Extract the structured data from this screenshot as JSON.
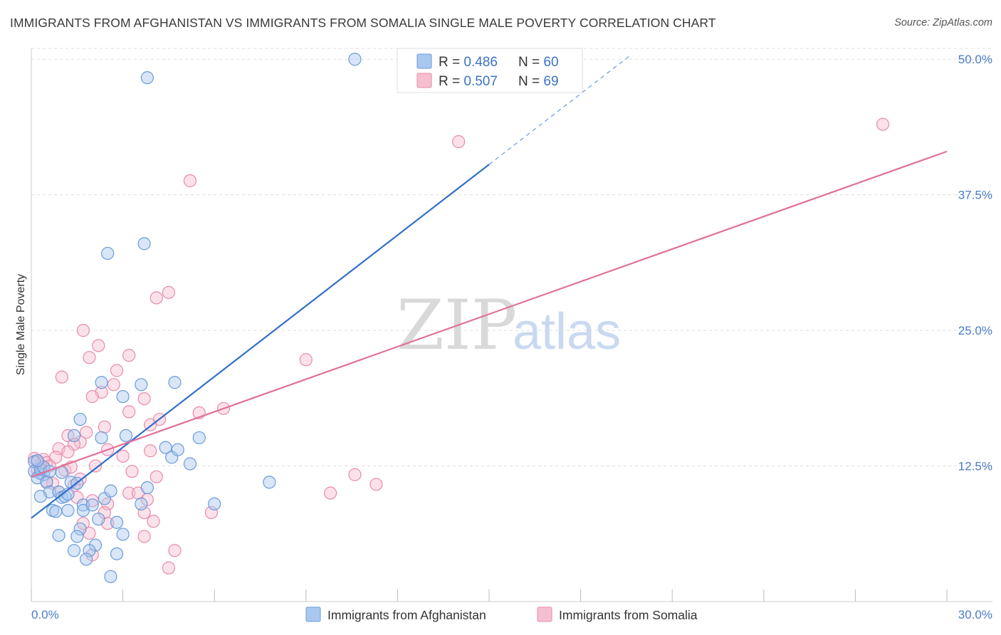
{
  "header": {
    "title": "IMMIGRANTS FROM AFGHANISTAN VS IMMIGRANTS FROM SOMALIA SINGLE MALE POVERTY CORRELATION CHART",
    "source": "Source: ZipAtlas.com"
  },
  "watermark": {
    "zip": "ZIP",
    "atlas": "atlas"
  },
  "colors": {
    "afghanistan_fill": "#a9c8f0",
    "afghanistan_stroke": "#6b9bd9",
    "afghanistan_line": "#2f6fc9",
    "somalia_fill": "#f6bfd0",
    "somalia_stroke": "#e98aab",
    "somalia_line": "#e07098",
    "tick_text": "#4a7cc7"
  },
  "legend": {
    "items": [
      {
        "r_label": "R = ",
        "r_value": "0.486",
        "n_label": "N = ",
        "n_value": "60"
      },
      {
        "r_label": "R = ",
        "r_value": "0.507",
        "n_label": "N = ",
        "n_value": "69"
      }
    ]
  },
  "chart_data": {
    "type": "scatter",
    "title": "IMMIGRANTS FROM AFGHANISTAN VS IMMIGRANTS FROM SOMALIA SINGLE MALE POVERTY CORRELATION CHART",
    "xlabel": "",
    "ylabel": "Single Male Poverty",
    "xlim": [
      0,
      30
    ],
    "ylim": [
      0,
      51
    ],
    "x_tick_labels": [
      "0.0%",
      "30.0%"
    ],
    "y_ticks": [
      12.5,
      25.0,
      37.5,
      50.0
    ],
    "y_tick_labels": [
      "12.5%",
      "25.0%",
      "37.5%",
      "50.0%"
    ],
    "grid": true,
    "series": [
      {
        "name": "Immigrants from Afghanistan",
        "R": 0.486,
        "N": 60,
        "trend": {
          "x0": 0,
          "y0": 7.7,
          "x1": 15,
          "y1": 40.3,
          "dashed_to_x": 19.6
        },
        "points": [
          [
            10.6,
            50.0
          ],
          [
            3.8,
            48.3
          ],
          [
            3.7,
            33.0
          ],
          [
            2.5,
            32.1
          ],
          [
            2.3,
            20.2
          ],
          [
            3.6,
            20.0
          ],
          [
            4.7,
            20.2
          ],
          [
            3.0,
            18.9
          ],
          [
            1.6,
            16.8
          ],
          [
            1.4,
            15.3
          ],
          [
            2.3,
            15.1
          ],
          [
            3.1,
            15.3
          ],
          [
            5.5,
            15.1
          ],
          [
            4.4,
            14.2
          ],
          [
            4.6,
            13.3
          ],
          [
            4.8,
            14.0
          ],
          [
            5.2,
            12.7
          ],
          [
            0.1,
            12.0
          ],
          [
            0.3,
            11.8
          ],
          [
            0.4,
            11.7
          ],
          [
            0.2,
            11.4
          ],
          [
            0.5,
            11.0
          ],
          [
            1.0,
            11.9
          ],
          [
            1.3,
            11.0
          ],
          [
            0.6,
            10.1
          ],
          [
            0.9,
            10.1
          ],
          [
            1.0,
            9.6
          ],
          [
            1.1,
            9.7
          ],
          [
            0.3,
            9.7
          ],
          [
            0.7,
            8.4
          ],
          [
            0.8,
            8.3
          ],
          [
            1.2,
            8.4
          ],
          [
            1.7,
            8.9
          ],
          [
            1.7,
            8.4
          ],
          [
            2.4,
            9.5
          ],
          [
            2.6,
            10.2
          ],
          [
            3.8,
            10.5
          ],
          [
            3.6,
            9.0
          ],
          [
            2.2,
            7.6
          ],
          [
            2.8,
            7.3
          ],
          [
            1.6,
            6.7
          ],
          [
            1.5,
            6.0
          ],
          [
            0.9,
            6.1
          ],
          [
            3.0,
            6.2
          ],
          [
            2.1,
            5.2
          ],
          [
            1.4,
            4.7
          ],
          [
            1.9,
            4.7
          ],
          [
            2.8,
            4.4
          ],
          [
            1.8,
            3.9
          ],
          [
            2.6,
            2.3
          ],
          [
            6.0,
            9.0
          ],
          [
            7.8,
            11.0
          ],
          [
            0.1,
            12.9
          ],
          [
            0.3,
            12.2
          ],
          [
            1.2,
            9.9
          ],
          [
            1.5,
            10.9
          ],
          [
            2.0,
            8.9
          ],
          [
            0.4,
            12.4
          ],
          [
            0.6,
            12.0
          ],
          [
            0.2,
            13.0
          ]
        ]
      },
      {
        "name": "Immigrants from Somalia",
        "R": 0.507,
        "N": 69,
        "trend": {
          "x0": 0,
          "y0": 11.5,
          "x1": 30,
          "y1": 41.5
        },
        "points": [
          [
            27.9,
            44.0
          ],
          [
            14.0,
            42.4
          ],
          [
            5.2,
            38.8
          ],
          [
            4.5,
            28.5
          ],
          [
            4.1,
            28.0
          ],
          [
            1.7,
            25.0
          ],
          [
            2.2,
            23.6
          ],
          [
            1.9,
            22.5
          ],
          [
            3.2,
            22.7
          ],
          [
            9.0,
            22.3
          ],
          [
            1.0,
            20.7
          ],
          [
            2.8,
            21.3
          ],
          [
            2.7,
            20.0
          ],
          [
            2.3,
            19.3
          ],
          [
            2.0,
            18.9
          ],
          [
            3.7,
            18.7
          ],
          [
            3.2,
            17.5
          ],
          [
            5.5,
            17.4
          ],
          [
            6.3,
            17.8
          ],
          [
            4.2,
            16.8
          ],
          [
            2.4,
            16.1
          ],
          [
            3.9,
            16.3
          ],
          [
            1.8,
            15.6
          ],
          [
            1.2,
            15.3
          ],
          [
            1.6,
            14.7
          ],
          [
            1.4,
            14.5
          ],
          [
            0.9,
            14.1
          ],
          [
            1.2,
            13.8
          ],
          [
            3.9,
            13.9
          ],
          [
            2.5,
            14.0
          ],
          [
            0.1,
            13.2
          ],
          [
            0.4,
            13.1
          ],
          [
            0.5,
            12.8
          ],
          [
            0.8,
            13.3
          ],
          [
            0.6,
            12.5
          ],
          [
            0.2,
            12.2
          ],
          [
            1.1,
            12.1
          ],
          [
            2.1,
            12.5
          ],
          [
            3.0,
            13.4
          ],
          [
            3.3,
            12.0
          ],
          [
            0.7,
            10.9
          ],
          [
            0.9,
            10.1
          ],
          [
            1.4,
            10.7
          ],
          [
            1.6,
            11.3
          ],
          [
            4.1,
            11.5
          ],
          [
            3.2,
            10.0
          ],
          [
            3.5,
            10.0
          ],
          [
            3.8,
            9.4
          ],
          [
            2.5,
            9.0
          ],
          [
            2.0,
            9.3
          ],
          [
            3.7,
            8.2
          ],
          [
            5.9,
            8.2
          ],
          [
            2.4,
            8.2
          ],
          [
            4.0,
            7.4
          ],
          [
            2.5,
            7.2
          ],
          [
            1.7,
            7.2
          ],
          [
            1.9,
            6.3
          ],
          [
            3.7,
            6.0
          ],
          [
            2.0,
            4.3
          ],
          [
            4.7,
            4.7
          ],
          [
            4.5,
            3.1
          ],
          [
            9.8,
            10.0
          ],
          [
            10.6,
            11.7
          ],
          [
            11.3,
            10.8
          ],
          [
            1.5,
            9.6
          ],
          [
            0.3,
            12.6
          ],
          [
            0.2,
            12.9
          ],
          [
            0.5,
            11.1
          ],
          [
            1.3,
            12.4
          ]
        ]
      }
    ]
  },
  "bottom_legend": {
    "items": [
      {
        "label": "Immigrants from Afghanistan"
      },
      {
        "label": "Immigrants from Somalia"
      }
    ]
  }
}
